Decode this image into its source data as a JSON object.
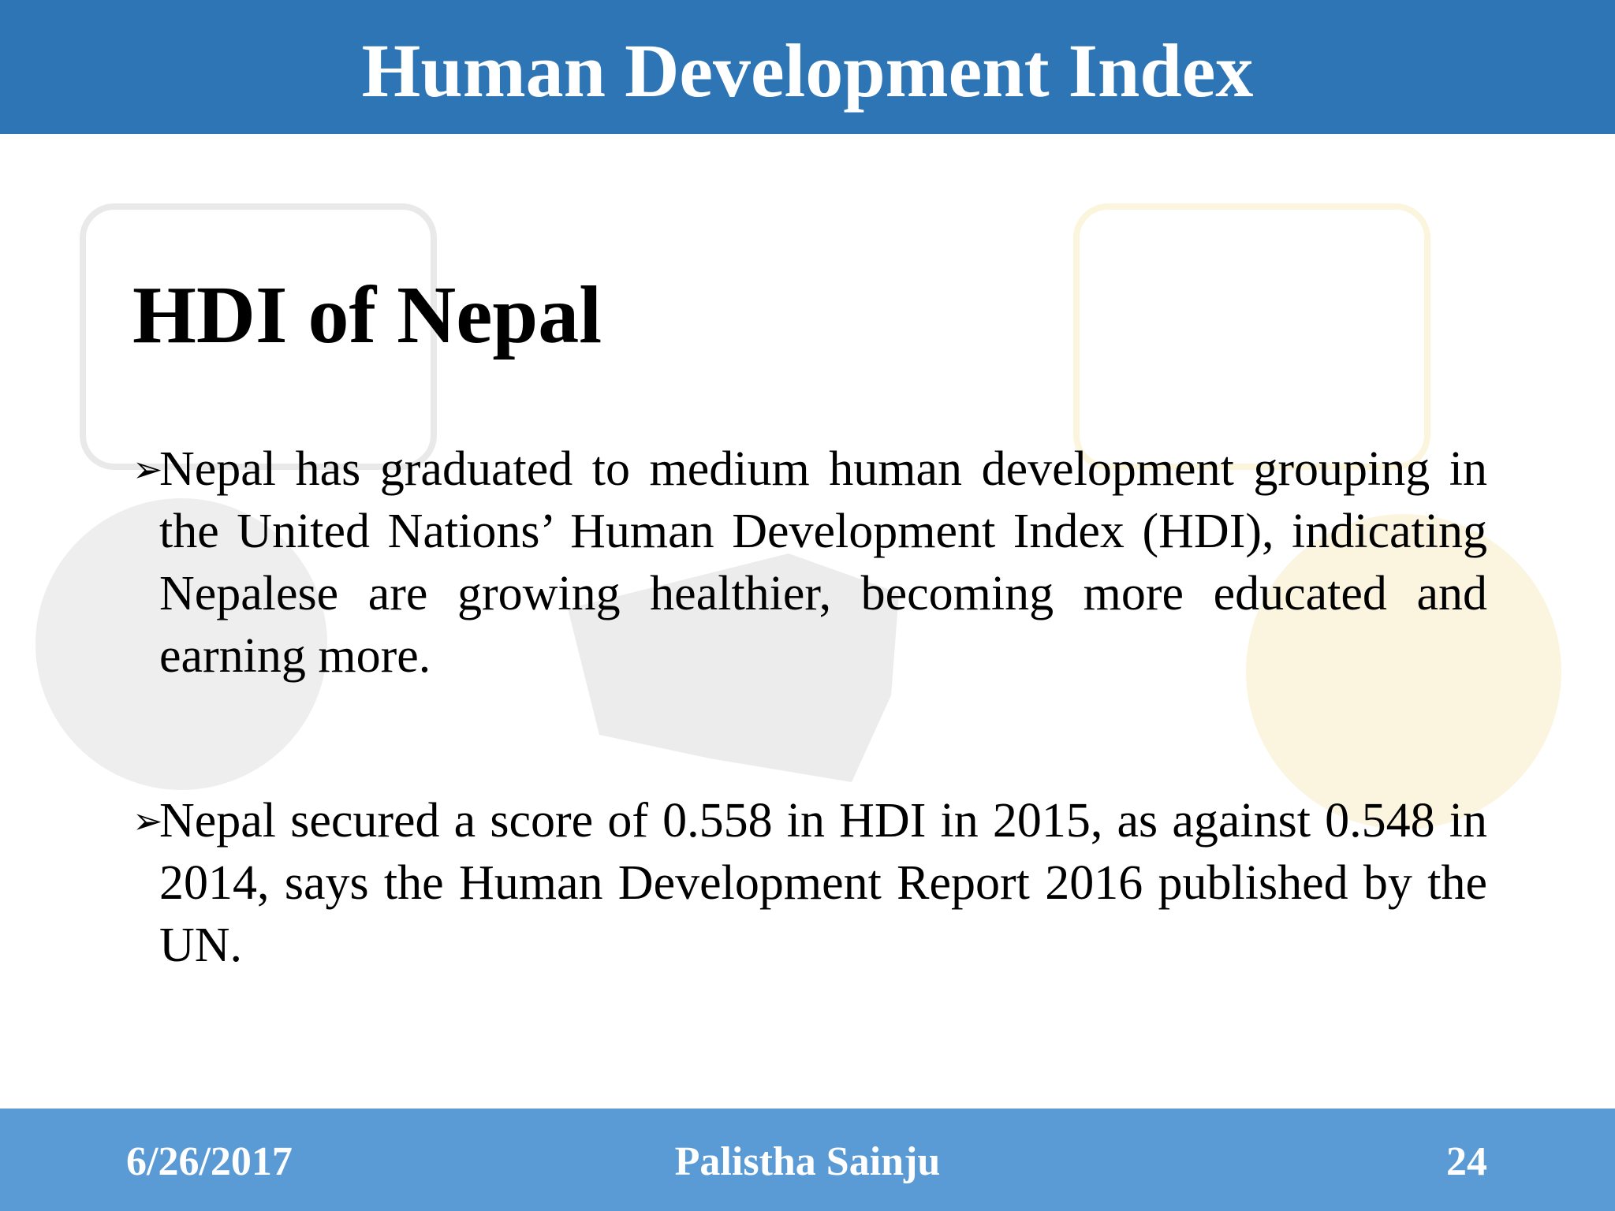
{
  "header": {
    "title": "Human Development Index"
  },
  "body": {
    "heading": "HDI of Nepal",
    "bullets": [
      "Nepal has graduated to medium human development grouping in the United Nations’ Human Development Index (HDI), indicating Nepalese are growing healthier, becoming more educated and earning more.",
      "Nepal secured a score of 0.558 in HDI in 2015, as against 0.548 in 2014, says the Human Development Report 2016 published by the UN."
    ]
  },
  "footer": {
    "date": "6/26/2017",
    "author": "Palistha Sainju",
    "page": "24"
  }
}
